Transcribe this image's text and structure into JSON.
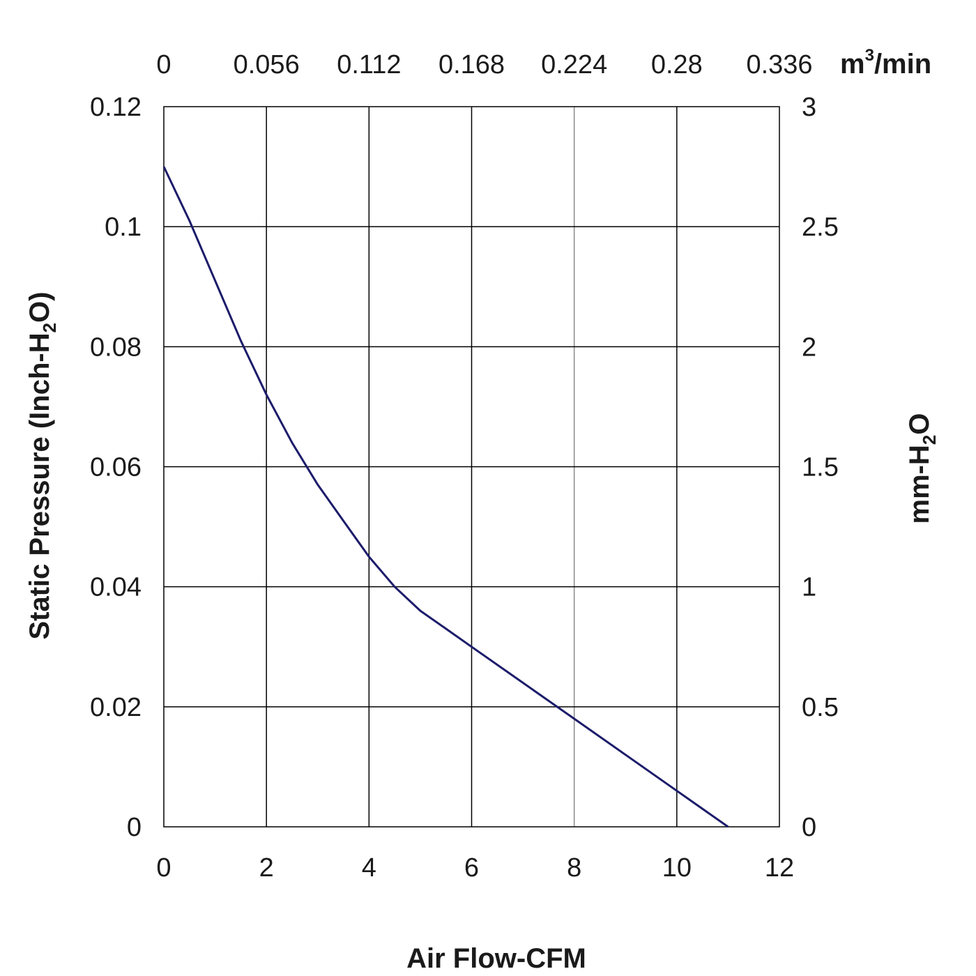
{
  "chart_data": {
    "type": "line",
    "xlabel": "Air Flow-CFM",
    "ylabel": {
      "prefix": "Static Pressure (Inch-H",
      "sub": "2",
      "suffix": "O)"
    },
    "y2label": {
      "prefix": "mm-H",
      "sub": "2",
      "suffix": "O"
    },
    "x2label": {
      "prefix": "m",
      "sup": "3",
      "suffix": "/min"
    },
    "xlim": [
      0,
      12
    ],
    "ylim": [
      0,
      0.12
    ],
    "y2lim": [
      0,
      3
    ],
    "x_ticks": [
      "0",
      "2",
      "4",
      "6",
      "8",
      "10",
      "12"
    ],
    "x2_ticks": [
      "0",
      "0.056",
      "0.112",
      "0.168",
      "0.224",
      "0.28",
      "0.336"
    ],
    "y_ticks": [
      "0",
      "0.02",
      "0.04",
      "0.06",
      "0.08",
      "0.1",
      "0.12"
    ],
    "y2_ticks": [
      "0",
      "0.5",
      "1",
      "1.5",
      "2",
      "2.5",
      "3"
    ],
    "grid": true,
    "series": [
      {
        "color": "#1c1c6b",
        "x": [
          0,
          0.5,
          1,
          1.5,
          2,
          2.5,
          3,
          3.5,
          4,
          4.5,
          5,
          5.5,
          6,
          7,
          8,
          9,
          10,
          11
        ],
        "y": [
          0.11,
          0.101,
          0.091,
          0.081,
          0.072,
          0.064,
          0.057,
          0.051,
          0.045,
          0.04,
          0.036,
          0.033,
          0.03,
          0.024,
          0.018,
          0.012,
          0.006,
          0.0
        ]
      }
    ]
  }
}
